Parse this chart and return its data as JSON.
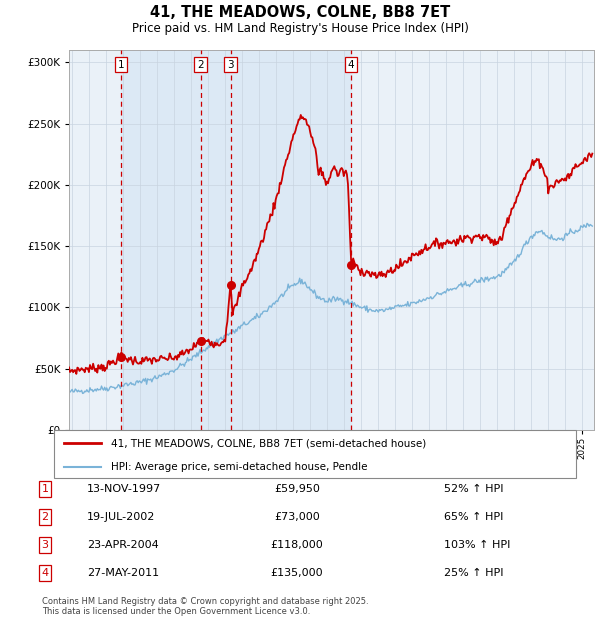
{
  "title": "41, THE MEADOWS, COLNE, BB8 7ET",
  "subtitle": "Price paid vs. HM Land Registry's House Price Index (HPI)",
  "legend_label_red": "41, THE MEADOWS, COLNE, BB8 7ET (semi-detached house)",
  "legend_label_blue": "HPI: Average price, semi-detached house, Pendle",
  "footer": "Contains HM Land Registry data © Crown copyright and database right 2025.\nThis data is licensed under the Open Government Licence v3.0.",
  "purchases": [
    {
      "num": 1,
      "date": "13-NOV-1997",
      "date_dec": 1997.87,
      "price": 59950,
      "pct": "52% ↑ HPI"
    },
    {
      "num": 2,
      "date": "19-JUL-2002",
      "date_dec": 2002.55,
      "price": 73000,
      "pct": "65% ↑ HPI"
    },
    {
      "num": 3,
      "date": "23-APR-2004",
      "date_dec": 2004.31,
      "price": 118000,
      "pct": "103% ↑ HPI"
    },
    {
      "num": 4,
      "date": "27-MAY-2011",
      "date_dec": 2011.41,
      "price": 135000,
      "pct": "25% ↑ HPI"
    }
  ],
  "hpi_color": "#7ab3d8",
  "price_color": "#cc0000",
  "span_color": "#dce9f5",
  "plot_bg": "#eaf1f8",
  "grid_color": "#c8d4e0",
  "ylim": [
    0,
    310000
  ],
  "yticks": [
    0,
    50000,
    100000,
    150000,
    200000,
    250000,
    300000
  ],
  "xlim_start": 1994.8,
  "xlim_end": 2025.7
}
